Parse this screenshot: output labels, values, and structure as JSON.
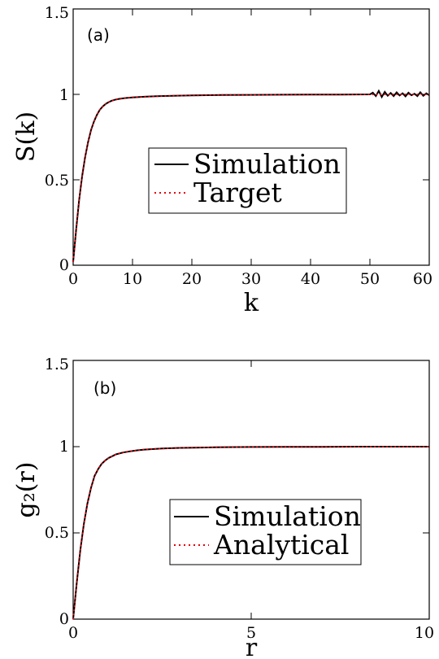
{
  "chart_data": [
    {
      "type": "line",
      "panel_label": "(a)",
      "xlabel": "k",
      "ylabel": "S(k)",
      "xlim": [
        0,
        60
      ],
      "ylim": [
        0,
        1.5
      ],
      "xticks": [
        0,
        10,
        20,
        30,
        40,
        50,
        60
      ],
      "yticks": [
        0,
        0.5,
        1,
        1.5
      ],
      "xtick_labels": [
        "0",
        "10",
        "20",
        "30",
        "40",
        "50",
        "60"
      ],
      "ytick_labels": [
        "0",
        "0.5",
        "1",
        "1.5"
      ],
      "legend_position": "center",
      "grid": false,
      "series": [
        {
          "name": "Simulation",
          "color": "#000000",
          "style": "solid",
          "x": [
            0,
            0.5,
            1,
            1.5,
            2,
            2.5,
            3,
            3.5,
            4,
            4.5,
            5,
            5.5,
            6,
            6.5,
            7,
            7.5,
            8,
            9,
            10,
            12,
            14,
            16,
            20,
            25,
            30,
            35,
            40,
            45,
            50,
            50.5,
            51,
            51.5,
            52,
            52.5,
            53,
            53.5,
            54,
            54.5,
            55,
            55.5,
            56,
            56.5,
            57,
            57.5,
            58,
            58.5,
            59,
            59.5,
            60
          ],
          "y": [
            0.02,
            0.21,
            0.38,
            0.52,
            0.63,
            0.72,
            0.79,
            0.84,
            0.88,
            0.91,
            0.93,
            0.945,
            0.955,
            0.963,
            0.968,
            0.972,
            0.975,
            0.979,
            0.982,
            0.986,
            0.989,
            0.991,
            0.994,
            0.996,
            0.997,
            0.998,
            0.999,
            0.999,
            1.0,
            1.01,
            0.99,
            1.02,
            0.985,
            1.015,
            0.992,
            1.008,
            0.99,
            1.012,
            0.994,
            1.006,
            0.988,
            1.01,
            0.995,
            1.004,
            0.99,
            1.012,
            0.992,
            1.006,
            0.995
          ]
        },
        {
          "name": "Target",
          "color": "#e8000b",
          "style": "dotted",
          "x": [
            0,
            0.5,
            1,
            1.5,
            2,
            2.5,
            3,
            3.5,
            4,
            4.5,
            5,
            5.5,
            6,
            6.5,
            7,
            7.5,
            8,
            9,
            10,
            12,
            14,
            16,
            20,
            25,
            30,
            35,
            40,
            45,
            50,
            55,
            60
          ],
          "y": [
            0.02,
            0.21,
            0.38,
            0.52,
            0.63,
            0.72,
            0.79,
            0.84,
            0.88,
            0.91,
            0.93,
            0.945,
            0.955,
            0.963,
            0.968,
            0.972,
            0.975,
            0.979,
            0.982,
            0.986,
            0.989,
            0.991,
            0.994,
            0.996,
            0.997,
            0.998,
            0.999,
            0.999,
            1.0,
            1.0,
            1.0
          ]
        }
      ]
    },
    {
      "type": "line",
      "panel_label": "(b)",
      "xlabel": "r",
      "ylabel": "g₂(r)",
      "xlim": [
        0,
        10
      ],
      "ylim": [
        0,
        1.5
      ],
      "xticks": [
        0,
        5,
        10
      ],
      "yticks": [
        0,
        0.5,
        1,
        1.5
      ],
      "xtick_labels": [
        "0",
        "5",
        "10"
      ],
      "ytick_labels": [
        "0",
        "0.5",
        "1",
        "1.5"
      ],
      "legend_position": "lower-right",
      "grid": false,
      "series": [
        {
          "name": "Simulation",
          "color": "#000000",
          "style": "solid",
          "x": [
            0,
            0.1,
            0.2,
            0.3,
            0.4,
            0.5,
            0.6,
            0.7,
            0.8,
            0.9,
            1.0,
            1.1,
            1.2,
            1.4,
            1.6,
            1.8,
            2.0,
            2.5,
            3,
            4,
            5,
            6,
            7,
            8,
            9,
            10
          ],
          "y": [
            0.0,
            0.21,
            0.4,
            0.55,
            0.67,
            0.76,
            0.83,
            0.87,
            0.9,
            0.92,
            0.935,
            0.945,
            0.955,
            0.966,
            0.973,
            0.979,
            0.983,
            0.989,
            0.993,
            0.996,
            0.998,
            0.999,
            0.999,
            1.0,
            1.0,
            1.0
          ]
        },
        {
          "name": "Analytical",
          "color": "#e8000b",
          "style": "dotted",
          "x": [
            0,
            0.1,
            0.2,
            0.3,
            0.4,
            0.5,
            0.6,
            0.7,
            0.8,
            0.9,
            1.0,
            1.1,
            1.2,
            1.4,
            1.6,
            1.8,
            2.0,
            2.5,
            3,
            4,
            5,
            6,
            7,
            8,
            9,
            10
          ],
          "y": [
            0.0,
            0.21,
            0.4,
            0.55,
            0.67,
            0.76,
            0.83,
            0.87,
            0.9,
            0.92,
            0.935,
            0.945,
            0.955,
            0.966,
            0.973,
            0.979,
            0.983,
            0.989,
            0.993,
            0.996,
            0.998,
            0.999,
            0.999,
            1.0,
            1.0,
            1.0
          ]
        }
      ]
    }
  ]
}
